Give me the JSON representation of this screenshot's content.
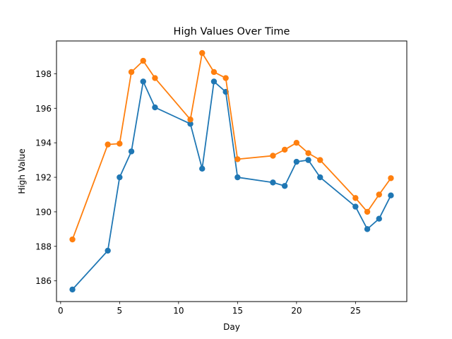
{
  "chart_data": {
    "type": "line",
    "title": "High Values Over Time",
    "xlabel": "Day",
    "ylabel": "High Value",
    "xlim": [
      -0.35,
      29.35
    ],
    "ylim": [
      184.8,
      199.9
    ],
    "xticks": [
      0,
      5,
      10,
      15,
      20,
      25
    ],
    "yticks": [
      186,
      188,
      190,
      192,
      194,
      196,
      198
    ],
    "grid": false,
    "legend": "none",
    "x": [
      1,
      4,
      5,
      6,
      7,
      8,
      11,
      12,
      13,
      14,
      15,
      18,
      19,
      20,
      21,
      22,
      25,
      26,
      27,
      28
    ],
    "series": [
      {
        "color": "#1f77b4",
        "values": [
          185.5,
          187.75,
          192.0,
          193.5,
          197.55,
          196.05,
          195.1,
          192.5,
          197.55,
          196.95,
          192.0,
          191.7,
          191.5,
          192.9,
          193.0,
          192.0,
          190.3,
          189.0,
          189.6,
          190.95
        ]
      },
      {
        "color": "#ff7f0e",
        "values": [
          188.4,
          193.9,
          193.95,
          198.1,
          198.75,
          197.75,
          195.35,
          199.2,
          198.1,
          197.75,
          193.05,
          193.25,
          193.6,
          194.0,
          193.4,
          193.0,
          190.8,
          190.0,
          191.0,
          191.95
        ]
      }
    ]
  }
}
